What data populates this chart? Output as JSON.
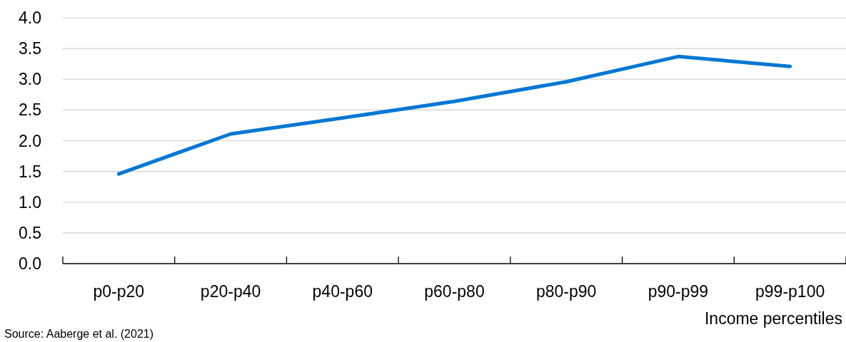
{
  "chart_data": {
    "type": "line",
    "xlabel": "Income percentiles",
    "annotations": [
      "Source: Aaberge et al. (2021)"
    ],
    "categories": [
      "p0-p20",
      "p20-p40",
      "p40-p60",
      "p60-p80",
      "p80-p90",
      "p90-p99",
      "p99-p100"
    ],
    "series": [
      {
        "color": "#0077d4",
        "values": [
          1.46,
          2.11,
          2.37,
          2.64,
          2.96,
          3.37,
          3.21
        ]
      }
    ],
    "ylim": [
      0,
      4
    ],
    "yticks": [
      {
        "value": 0,
        "label": "0.0"
      },
      {
        "value": 0.5,
        "label": "0.5"
      },
      {
        "value": 1,
        "label": "1.0"
      },
      {
        "value": 1.5,
        "label": "1.5"
      },
      {
        "value": 2,
        "label": "2.0"
      },
      {
        "value": 2.5,
        "label": "2.5"
      },
      {
        "value": 3,
        "label": "3.0"
      },
      {
        "value": 3.5,
        "label": "3.5"
      },
      {
        "value": 4,
        "label": "4.0"
      }
    ],
    "grid": "y"
  }
}
